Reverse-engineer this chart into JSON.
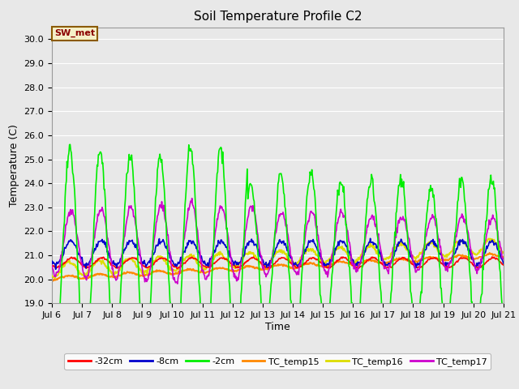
{
  "title": "Soil Temperature Profile C2",
  "xlabel": "Time",
  "ylabel": "Temperature (C)",
  "annotation": "SW_met",
  "ylim": [
    19.0,
    30.5
  ],
  "yticks": [
    19.0,
    20.0,
    21.0,
    22.0,
    23.0,
    24.0,
    25.0,
    26.0,
    27.0,
    28.0,
    29.0,
    30.0
  ],
  "fig_bg_color": "#e8e8e8",
  "plot_bg_color": "#e8e8e8",
  "grid_color": "#ffffff",
  "series": {
    "-32cm": {
      "color": "#ff0000",
      "linewidth": 1.2
    },
    "-8cm": {
      "color": "#0000cc",
      "linewidth": 1.2
    },
    "-2cm": {
      "color": "#00ee00",
      "linewidth": 1.2
    },
    "TC_temp15": {
      "color": "#ff8800",
      "linewidth": 1.5
    },
    "TC_temp16": {
      "color": "#dddd00",
      "linewidth": 1.5
    },
    "TC_temp17": {
      "color": "#cc00cc",
      "linewidth": 1.2
    }
  },
  "n_points": 720,
  "x_start": 6,
  "x_end": 21,
  "xtick_labels": [
    "Jul 6",
    "Jul 7",
    "Jul 8",
    "Jul 9",
    "Jul 10",
    "Jul 11",
    "Jul 12",
    "Jul 13",
    "Jul 14",
    "Jul 15",
    "Jul 16",
    "Jul 17",
    "Jul 18",
    "Jul 19",
    "Jul 20",
    "Jul 21"
  ],
  "xtick_positions": [
    6,
    7,
    8,
    9,
    10,
    11,
    12,
    13,
    14,
    15,
    16,
    17,
    18,
    19,
    20,
    21
  ]
}
